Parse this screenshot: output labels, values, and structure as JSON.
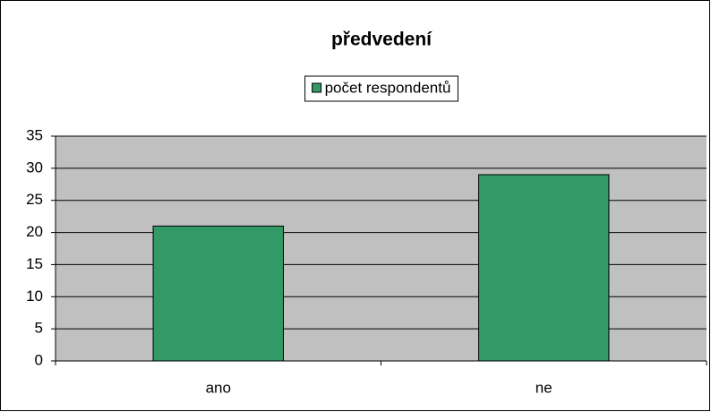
{
  "chart_data": {
    "type": "bar",
    "title": "předvedení",
    "categories": [
      "ano",
      "ne"
    ],
    "series": [
      {
        "name": "počet respondentů",
        "color": "#339966",
        "values": [
          21,
          29
        ]
      }
    ],
    "ylim": [
      0,
      35
    ],
    "yticks": [
      0,
      5,
      10,
      15,
      20,
      25,
      30,
      35
    ],
    "grid": true,
    "legend": "top"
  }
}
